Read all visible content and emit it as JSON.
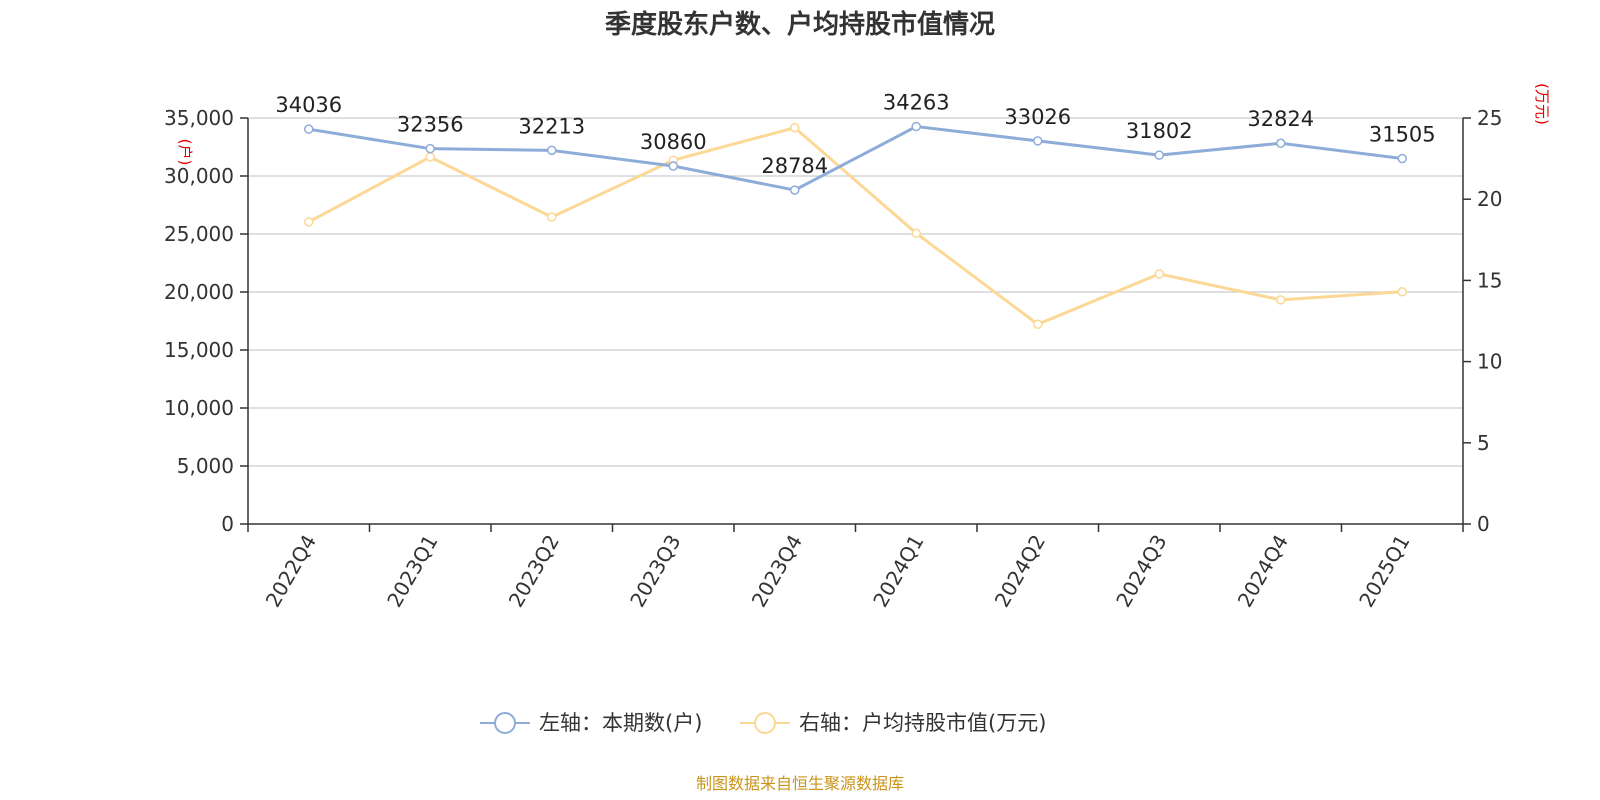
{
  "title": "季度股东户数、户均持股市值情况",
  "footer": "制图数据来自恒生聚源数据库",
  "colors": {
    "left_series": "#8eacd8",
    "right_series": "#fcd896",
    "axis": "#333333",
    "grid": "#cccccc",
    "unit_label": "#e00000",
    "footer": "#c9941a"
  },
  "chart_data": {
    "type": "line",
    "title": "季度股东户数、户均持股市值情况",
    "categories": [
      "2022Q4",
      "2023Q1",
      "2023Q2",
      "2023Q3",
      "2023Q4",
      "2024Q1",
      "2024Q2",
      "2024Q3",
      "2024Q4",
      "2025Q1"
    ],
    "y_left": {
      "unit": "(户)",
      "range": [
        0,
        35000
      ],
      "ticks": [
        0,
        5000,
        10000,
        15000,
        20000,
        25000,
        30000,
        35000
      ],
      "tick_labels": [
        "0",
        "5,000",
        "10,000",
        "15,000",
        "20,000",
        "25,000",
        "30,000",
        "35,000"
      ]
    },
    "y_right": {
      "unit": "(万元)",
      "range": [
        0,
        25
      ],
      "ticks": [
        0,
        5,
        10,
        15,
        20,
        25
      ],
      "tick_labels": [
        "0",
        "5",
        "10",
        "15",
        "20",
        "25"
      ]
    },
    "grid": true,
    "legend_position": "bottom",
    "series": [
      {
        "name": "左轴：本期数(户)",
        "axis": "left",
        "values": [
          34036,
          32356,
          32213,
          30860,
          28784,
          34263,
          33026,
          31802,
          32824,
          31505
        ],
        "labels": [
          "34036",
          "32356",
          "32213",
          "30860",
          "28784",
          "34263",
          "33026",
          "31802",
          "32824",
          "31505"
        ]
      },
      {
        "name": "右轴：户均持股市值(万元)",
        "axis": "right",
        "values": [
          18.6,
          22.6,
          18.9,
          22.4,
          24.4,
          17.9,
          12.3,
          15.4,
          13.8,
          14.3
        ]
      }
    ]
  }
}
